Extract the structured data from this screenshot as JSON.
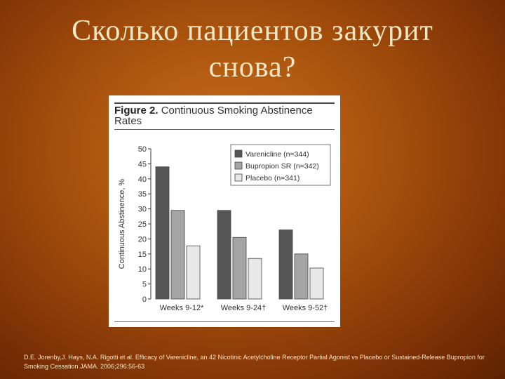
{
  "slide": {
    "title_line1": "Сколько пациентов закурит",
    "title_line2": "снова?",
    "citation": "D.E. Jorenby,J. Hays, N.A. Rigotti et al. Efficacy of Varenicline, an 42 Nicotinic Acetylcholine Receptor Partial Agonist vs Placebo or Sustained-Release Bupropion for Smoking Cessation JAMA. 2006;296:56-63"
  },
  "figure": {
    "label": "Figure 2.",
    "caption": "Continuous Smoking Abstinence Rates"
  },
  "chart_data": {
    "type": "bar",
    "ylabel": "Continuous Abstinence, %",
    "xlabel": "",
    "ylim": [
      0,
      50
    ],
    "yticks": [
      "0",
      "5",
      "10",
      "15",
      "20",
      "25",
      "30",
      "35",
      "40",
      "45",
      "50"
    ],
    "categories": [
      "Weeks 9-12*",
      "Weeks 9-24†",
      "Weeks 9-52†"
    ],
    "series": [
      {
        "name": "Varenicline (n=344)",
        "values": [
          44,
          29.5,
          23
        ],
        "color": "#555555"
      },
      {
        "name": "Bupropion SR (n=342)",
        "values": [
          29.5,
          20.5,
          15
        ],
        "color": "#a5a5a5"
      },
      {
        "name": "Placebo (n=341)",
        "values": [
          17.7,
          13.5,
          10.3
        ],
        "color": "#e8e8e8"
      }
    ],
    "legend_position": "top-right",
    "grid": false
  }
}
